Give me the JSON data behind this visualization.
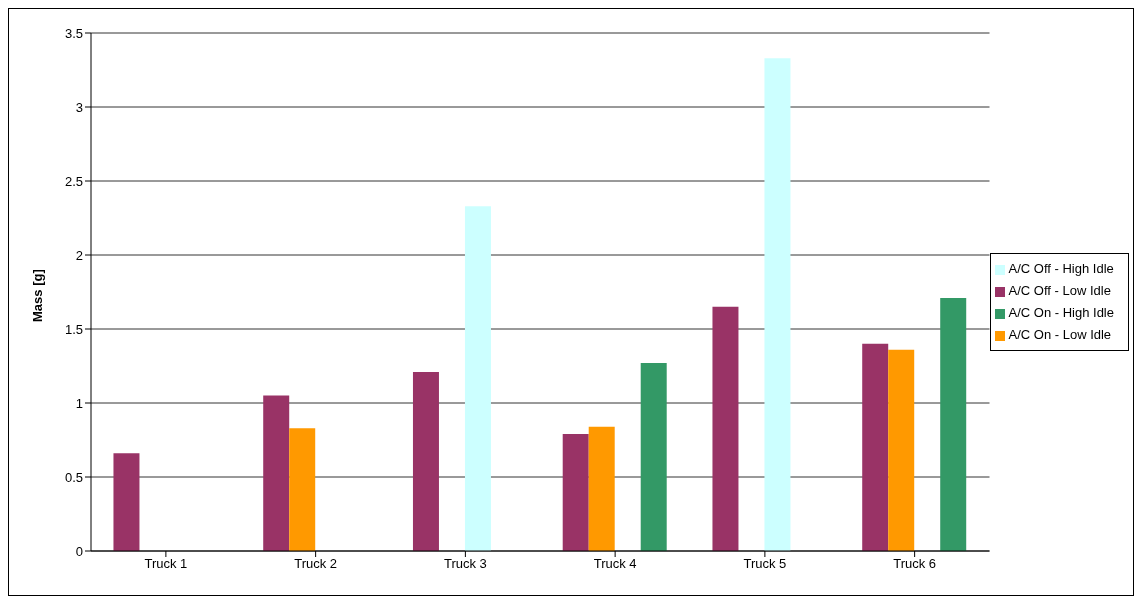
{
  "chart_data": {
    "type": "bar",
    "ylabel": "Mass [g]",
    "categories": [
      "Truck 1",
      "Truck 2",
      "Truck 3",
      "Truck 4",
      "Truck 5",
      "Truck 6"
    ],
    "series": [
      {
        "name": "A/C Off - Low Idle",
        "color": "#993366",
        "values": [
          0.66,
          1.05,
          1.21,
          0.79,
          1.65,
          1.4
        ]
      },
      {
        "name": "A/C On - Low Idle",
        "color": "#ff9900",
        "values": [
          null,
          0.83,
          null,
          0.84,
          null,
          1.36
        ]
      },
      {
        "name": "A/C Off - High Idle",
        "color": "#ccffff",
        "values": [
          null,
          null,
          2.33,
          null,
          3.33,
          null
        ]
      },
      {
        "name": "A/C On - High Idle",
        "color": "#339966",
        "values": [
          null,
          null,
          null,
          1.27,
          null,
          1.71
        ]
      }
    ],
    "ylim": [
      0,
      3.5
    ],
    "yticks": [
      0,
      0.5,
      1,
      1.5,
      2,
      2.5,
      3,
      3.5
    ],
    "grid": "y",
    "legend": "right"
  }
}
